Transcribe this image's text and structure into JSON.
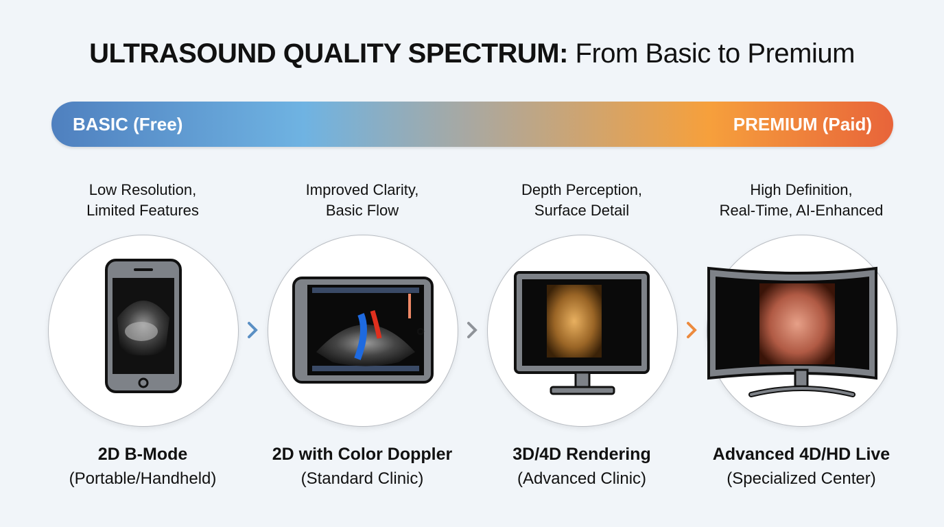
{
  "title": {
    "bold": "ULTRASOUND QUALITY SPECTRUM:",
    "rest": " From Basic to Premium"
  },
  "spectrum": {
    "left_label": "BASIC (Free)",
    "right_label": "PREMIUM (Paid)",
    "colors": [
      "#4f80bf",
      "#6fb3e2",
      "#aaa8a0",
      "#f6a03c",
      "#e8643a"
    ]
  },
  "tiers": [
    {
      "desc1": "Low Resolution,",
      "desc2": "Limited Features",
      "name": "2D B-Mode",
      "sub": "(Portable/Handheld)",
      "device": "smartphone-icon"
    },
    {
      "desc1": "Improved Clarity,",
      "desc2": "Basic Flow",
      "name": "2D with Color Doppler",
      "sub": "(Standard Clinic)",
      "device": "tablet-icon"
    },
    {
      "desc1": "Depth Perception,",
      "desc2": "Surface Detail",
      "name": "3D/4D Rendering",
      "sub": "(Advanced Clinic)",
      "device": "monitor-icon"
    },
    {
      "desc1": "High Definition,",
      "desc2": "Real-Time, AI-Enhanced",
      "name": "Advanced 4D/HD Live",
      "sub": "(Specialized Center)",
      "device": "curved-tv-icon"
    }
  ],
  "arrows": {
    "colors": [
      "#5a8fc4",
      "#8f9399",
      "#ec8a3e"
    ]
  }
}
